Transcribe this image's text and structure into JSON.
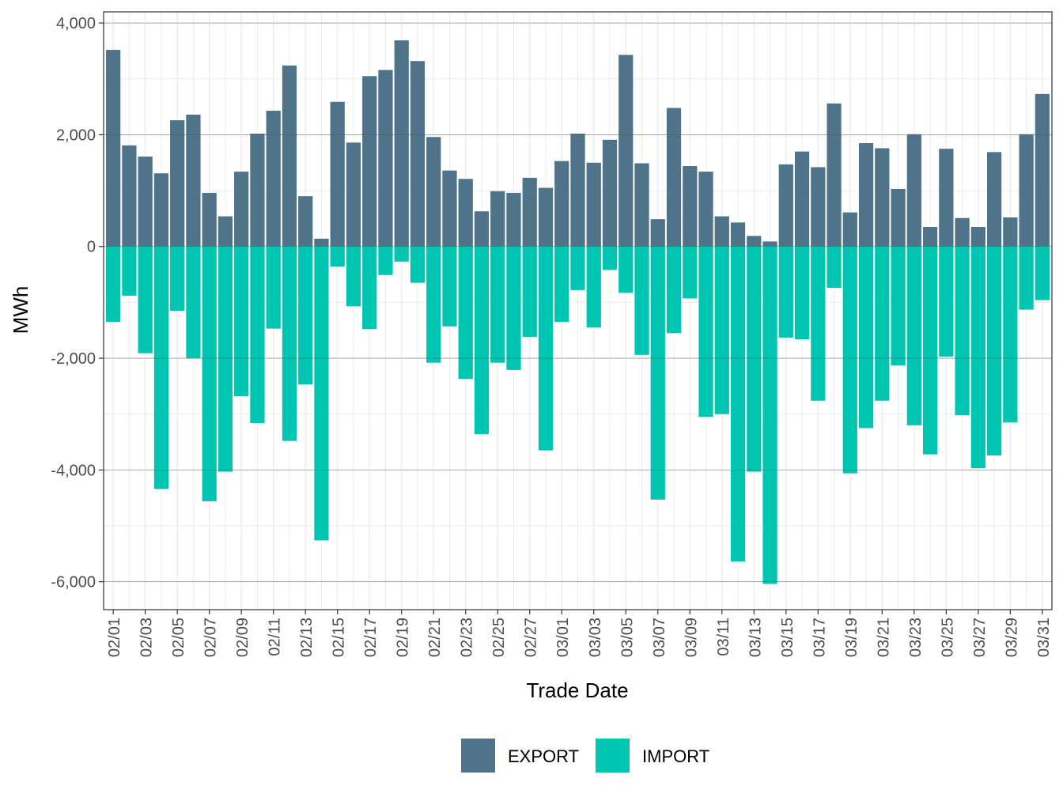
{
  "chart_data": {
    "type": "bar",
    "stacked": true,
    "xlabel": "Trade Date",
    "ylabel": "MWh",
    "ylim": [
      -6500,
      4200
    ],
    "y_ticks": [
      4000,
      2000,
      0,
      -2000,
      -4000,
      -6000
    ],
    "y_tick_labels": [
      "4,000",
      "2,000",
      "0",
      "-2,000",
      "-4,000",
      "-6,000"
    ],
    "x_tick_labels": [
      "02/01",
      "02/03",
      "02/05",
      "02/07",
      "02/09",
      "02/11",
      "02/13",
      "02/15",
      "02/17",
      "02/19",
      "02/21",
      "02/23",
      "02/25",
      "02/27",
      "03/01",
      "03/03",
      "03/05",
      "03/07",
      "03/09",
      "03/11",
      "03/13",
      "03/15",
      "03/17",
      "03/19",
      "03/21",
      "03/23",
      "03/25",
      "03/27",
      "03/29",
      "03/31"
    ],
    "categories": [
      "02/01",
      "02/02",
      "02/03",
      "02/04",
      "02/05",
      "02/06",
      "02/07",
      "02/08",
      "02/09",
      "02/10",
      "02/11",
      "02/12",
      "02/13",
      "02/14",
      "02/15",
      "02/16",
      "02/17",
      "02/18",
      "02/19",
      "02/20",
      "02/21",
      "02/22",
      "02/23",
      "02/24",
      "02/25",
      "02/26",
      "02/27",
      "02/28",
      "03/01",
      "03/02",
      "03/03",
      "03/04",
      "03/05",
      "03/06",
      "03/07",
      "03/08",
      "03/09",
      "03/10",
      "03/11",
      "03/12",
      "03/13",
      "03/14",
      "03/15",
      "03/16",
      "03/17",
      "03/18",
      "03/19",
      "03/20",
      "03/21",
      "03/22",
      "03/23",
      "03/24",
      "03/25",
      "03/26",
      "03/27",
      "03/28",
      "03/29",
      "03/30",
      "03/31"
    ],
    "legend_position": "bottom",
    "grid": true,
    "series": [
      {
        "name": "EXPORT",
        "color": "#4f7489",
        "values": [
          3520,
          1810,
          1610,
          1310,
          2260,
          2360,
          960,
          540,
          1340,
          2020,
          2430,
          3240,
          900,
          140,
          2590,
          1860,
          3050,
          3160,
          3690,
          3320,
          1960,
          1360,
          1210,
          630,
          990,
          960,
          1230,
          1050,
          1530,
          2020,
          1500,
          1910,
          3430,
          1490,
          490,
          2480,
          1440,
          1340,
          540,
          430,
          190,
          90,
          1470,
          1700,
          1420,
          2560,
          610,
          1850,
          1760,
          1030,
          2010,
          350,
          1750,
          510,
          350,
          1690,
          520,
          2010,
          2730
        ]
      },
      {
        "name": "IMPORT",
        "color": "#00c5b0",
        "values": [
          -1350,
          -880,
          -1910,
          -4340,
          -1150,
          -2000,
          -4560,
          -4030,
          -2680,
          -3160,
          -1470,
          -3480,
          -2470,
          -5260,
          -360,
          -1070,
          -1480,
          -510,
          -270,
          -650,
          -2080,
          -1430,
          -2370,
          -3360,
          -2080,
          -2210,
          -1620,
          -3650,
          -1350,
          -780,
          -1450,
          -420,
          -830,
          -1940,
          -4530,
          -1550,
          -930,
          -3050,
          -3000,
          -5640,
          -4030,
          -6040,
          -1630,
          -1660,
          -2760,
          -740,
          -4060,
          -3250,
          -2760,
          -2130,
          -3200,
          -3720,
          -1970,
          -3020,
          -3970,
          -3740,
          -3150,
          -1130,
          -960
        ]
      }
    ]
  }
}
